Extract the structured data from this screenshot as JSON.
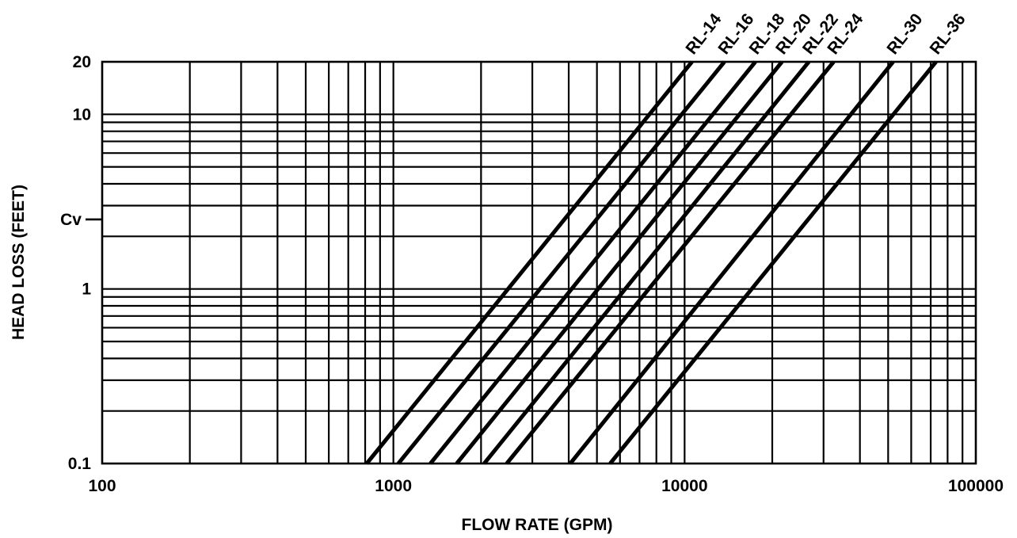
{
  "chart_data": {
    "type": "line",
    "xlabel": "FLOW RATE (GPM)",
    "ylabel": "HEAD LOSS (FEET)",
    "x_scale": "log",
    "y_scale": "log",
    "xlim": [
      100,
      100000
    ],
    "ylim": [
      0.1,
      20
    ],
    "grid": true,
    "x_ticks": [
      {
        "value": 100,
        "label": "100"
      },
      {
        "value": 1000,
        "label": "1000"
      },
      {
        "value": 10000,
        "label": "10000"
      },
      {
        "value": 100000,
        "label": "100000"
      }
    ],
    "y_ticks": [
      {
        "value": 0.1,
        "label": "0.1"
      },
      {
        "value": 1,
        "label": "1"
      },
      {
        "value": 10,
        "label": "10"
      },
      {
        "value": 20,
        "label": "20"
      }
    ],
    "annotation": {
      "label": "Cv",
      "y": 2.5
    },
    "series": [
      {
        "name": "RL-14",
        "x": [
          810,
          10600
        ],
        "y": [
          0.1,
          20
        ]
      },
      {
        "name": "RL-16",
        "x": [
          1040,
          13700
        ],
        "y": [
          0.1,
          20
        ]
      },
      {
        "name": "RL-18",
        "x": [
          1340,
          17500
        ],
        "y": [
          0.1,
          20
        ]
      },
      {
        "name": "RL-20",
        "x": [
          1650,
          21600
        ],
        "y": [
          0.1,
          20
        ]
      },
      {
        "name": "RL-22",
        "x": [
          2050,
          26700
        ],
        "y": [
          0.1,
          20
        ]
      },
      {
        "name": "RL-24",
        "x": [
          2450,
          32500
        ],
        "y": [
          0.1,
          20
        ]
      },
      {
        "name": "RL-30",
        "x": [
          4050,
          52000
        ],
        "y": [
          0.1,
          20
        ]
      },
      {
        "name": "RL-36",
        "x": [
          5550,
          73000
        ],
        "y": [
          0.1,
          20
        ]
      }
    ]
  }
}
